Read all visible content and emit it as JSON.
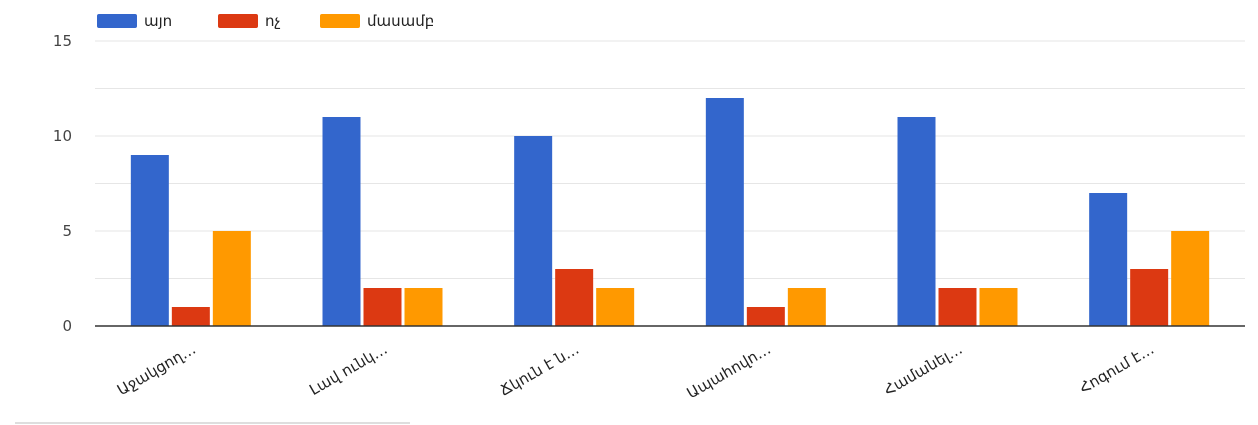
{
  "chart_data": {
    "type": "bar",
    "categories": [
      "Աջակցող…",
      "Լավ ունկ…",
      "Ճկուն է ն…",
      "Ապահովո…",
      "Համանել…",
      "Հոգում է…"
    ],
    "series": [
      {
        "name": "այո",
        "color": "#3366cc",
        "values": [
          9,
          11,
          10,
          12,
          11,
          7
        ]
      },
      {
        "name": "ոչ",
        "color": "#dc3912",
        "values": [
          1,
          2,
          3,
          1,
          2,
          3
        ]
      },
      {
        "name": "մասամբ",
        "color": "#ff9900",
        "values": [
          5,
          2,
          2,
          2,
          2,
          5
        ]
      }
    ],
    "ylim": [
      0,
      15
    ],
    "yticks": [
      "0",
      "5",
      "10",
      "15"
    ],
    "ytick_values": [
      0,
      5,
      10,
      15
    ],
    "grid": true,
    "legend_position": "top-left",
    "title": "",
    "xlabel": "",
    "ylabel": ""
  }
}
